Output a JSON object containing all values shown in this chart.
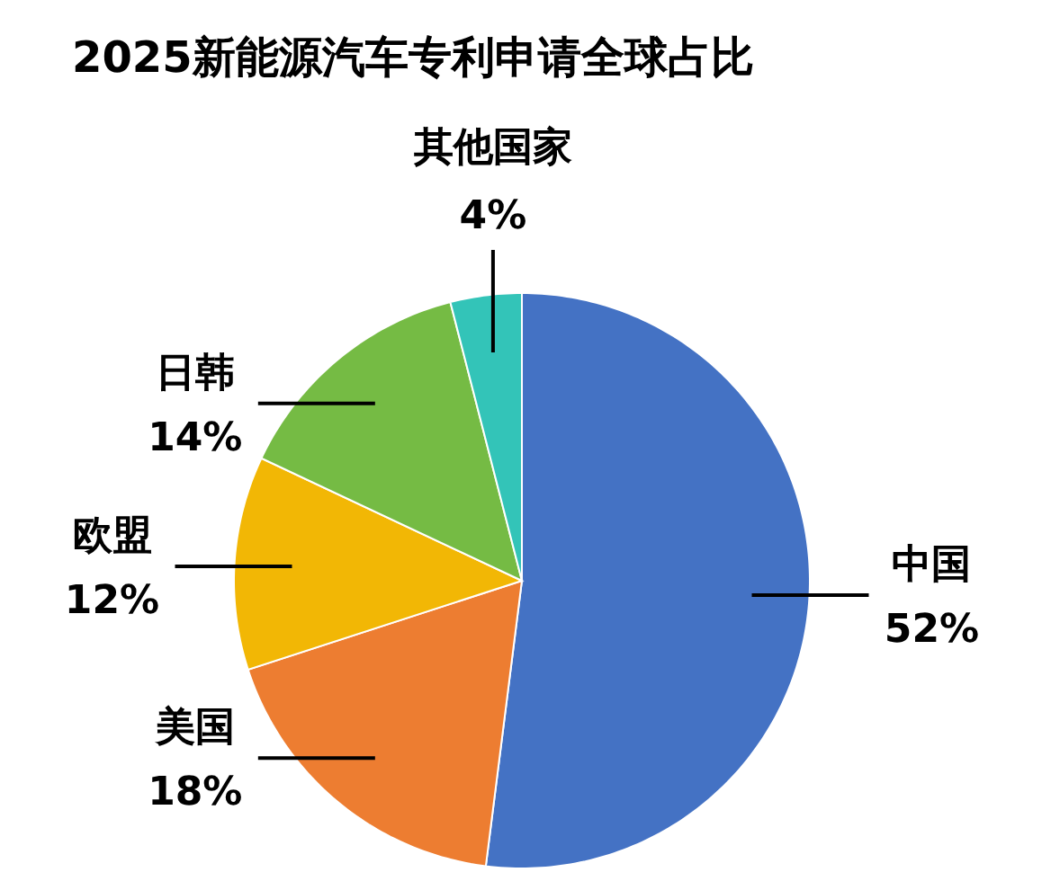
{
  "chart_data": {
    "type": "pie",
    "title": "2025新能源汽车专利申请全球占比",
    "categories": [
      "中国",
      "美国",
      "欧盟",
      "日韩",
      "其他国家"
    ],
    "values": [
      52,
      18,
      12,
      14,
      4
    ],
    "colors": [
      "#4472c4",
      "#ed7d31",
      "#f2b705",
      "#75bb44",
      "#33c4b8"
    ],
    "value_labels": [
      "52%",
      "18%",
      "12%",
      "14%",
      "4%"
    ],
    "legend": false
  }
}
